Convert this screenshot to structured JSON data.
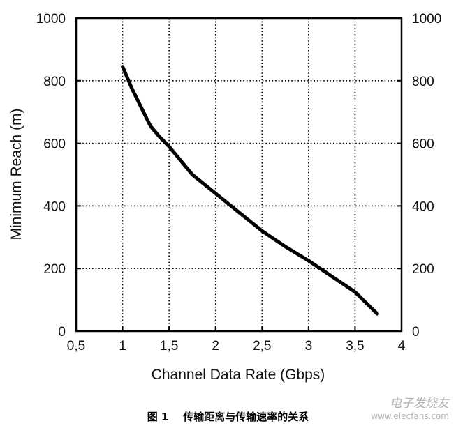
{
  "chart_data": {
    "type": "line",
    "xlabel": "Channel Data Rate (Gbps)",
    "ylabel": "Minimum Reach (m)",
    "xlim": [
      0.5,
      4
    ],
    "ylim": [
      0,
      1000
    ],
    "x_ticks": [
      "0,5",
      "1",
      "1,5",
      "2",
      "2,5",
      "3",
      "3,5",
      "4"
    ],
    "x_tick_values": [
      0.5,
      1,
      1.5,
      2,
      2.5,
      3,
      3.5,
      4
    ],
    "y_ticks": [
      "0",
      "200",
      "400",
      "600",
      "800",
      "1000"
    ],
    "y_tick_values": [
      0,
      200,
      400,
      600,
      800,
      1000
    ],
    "right_y_ticks": [
      "0",
      "200",
      "400",
      "600",
      "800",
      "1000"
    ],
    "grid": true,
    "grid_style": "dotted",
    "line_color": "#000000",
    "series": [
      {
        "x": [
          1.0,
          1.1,
          1.2,
          1.3,
          1.4,
          1.5,
          1.75,
          2.0,
          2.25,
          2.5,
          2.75,
          3.0,
          3.25,
          3.5,
          3.62,
          3.74
        ],
        "y": [
          845,
          775,
          715,
          655,
          620,
          590,
          500,
          440,
          380,
          320,
          270,
          225,
          175,
          125,
          90,
          55
        ]
      }
    ]
  },
  "caption": {
    "figure_label": "图 1",
    "text": "传输距离与传输速率的关系"
  },
  "watermark": {
    "name": "电子发烧友",
    "url": "www.elecfans.com"
  }
}
